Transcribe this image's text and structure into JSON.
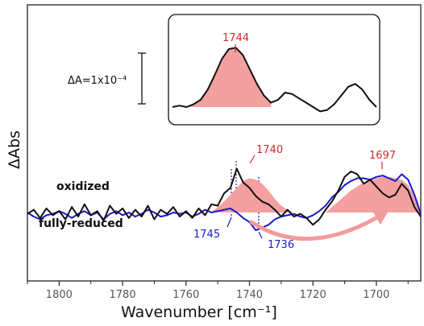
{
  "chart_data": {
    "type": "line",
    "xlabel": "Wavenumber [cm⁻¹]",
    "ylabel": "ΔAbs",
    "xlim": [
      1810,
      1686
    ],
    "x_reversed": true,
    "x_ticks": [
      1800,
      1780,
      1760,
      1740,
      1720,
      1700
    ],
    "series": [
      {
        "name": "oxidized",
        "color": "#111111",
        "x": [
          1810,
          1808,
          1806,
          1804,
          1802,
          1800,
          1798,
          1796,
          1794,
          1792,
          1790,
          1788,
          1786,
          1784,
          1782,
          1780,
          1778,
          1776,
          1774,
          1772,
          1770,
          1768,
          1766,
          1764,
          1762,
          1760,
          1758,
          1756,
          1754,
          1752,
          1750,
          1748,
          1746,
          1744,
          1742,
          1740,
          1738,
          1736,
          1734,
          1732,
          1730,
          1728,
          1726,
          1724,
          1722,
          1720,
          1718,
          1716,
          1714,
          1712,
          1710,
          1708,
          1706,
          1704,
          1702,
          1700,
          1698,
          1696,
          1694,
          1692,
          1690,
          1688,
          1686
        ],
        "y": [
          -0.1,
          0.2,
          -0.4,
          0.3,
          -0.2,
          0.1,
          -0.5,
          0.4,
          -0.3,
          0.6,
          -0.2,
          0.1,
          -0.6,
          0.5,
          -0.1,
          0.3,
          -0.4,
          0.2,
          -0.3,
          0.5,
          -0.5,
          0.2,
          -0.1,
          0.4,
          -0.3,
          0.1,
          -0.4,
          0.3,
          -0.2,
          0.6,
          0.5,
          1.4,
          1.8,
          3.2,
          2.2,
          1.8,
          1.2,
          0.8,
          0.6,
          0.2,
          -0.3,
          0.2,
          -0.3,
          -0.1,
          -0.4,
          -0.9,
          -0.5,
          0.2,
          0.8,
          1.6,
          2.6,
          3.0,
          2.8,
          2.1,
          2.4,
          1.9,
          1.4,
          1.1,
          1.3,
          2.1,
          1.6,
          0.4,
          -0.3
        ]
      },
      {
        "name": "fully-reduced",
        "color": "#1a1ad0",
        "x": [
          1810,
          1808,
          1806,
          1804,
          1802,
          1800,
          1798,
          1796,
          1794,
          1792,
          1790,
          1788,
          1786,
          1784,
          1782,
          1780,
          1778,
          1776,
          1774,
          1772,
          1770,
          1768,
          1766,
          1764,
          1762,
          1760,
          1758,
          1756,
          1754,
          1752,
          1750,
          1748,
          1746,
          1744,
          1742,
          1740,
          1738,
          1736,
          1734,
          1732,
          1730,
          1728,
          1726,
          1724,
          1722,
          1720,
          1718,
          1716,
          1714,
          1712,
          1710,
          1708,
          1706,
          1704,
          1702,
          1700,
          1698,
          1696,
          1694,
          1692,
          1690,
          1688,
          1686
        ],
        "y": [
          0.0,
          -0.3,
          -0.5,
          -0.2,
          -0.1,
          0.1,
          -0.1,
          -0.4,
          -0.1,
          0.1,
          -0.2,
          0.0,
          -0.5,
          -0.1,
          0.1,
          -0.2,
          0.0,
          -0.3,
          -0.1,
          0.2,
          0.0,
          -0.3,
          -0.2,
          0.0,
          -0.1,
          0.0,
          -0.3,
          -0.1,
          0.2,
          0.0,
          0.1,
          0.2,
          0.3,
          0.0,
          -0.4,
          -0.7,
          -1.3,
          -1.1,
          -0.9,
          -0.5,
          -0.3,
          -0.2,
          -0.1,
          -0.3,
          -0.4,
          -0.2,
          0.1,
          0.5,
          1.1,
          1.5,
          2.0,
          2.3,
          2.5,
          2.5,
          2.4,
          2.6,
          2.7,
          2.5,
          2.3,
          2.8,
          2.4,
          1.3,
          -0.1
        ]
      }
    ],
    "shaded_bands": [
      {
        "name": "band-1740",
        "color": "#f4a0a0",
        "x": [
          1752,
          1748,
          1744,
          1742,
          1740,
          1738,
          1736,
          1734,
          1732,
          1730,
          1728,
          1726
        ],
        "y": [
          0,
          0.8,
          1.8,
          2.3,
          2.5,
          2.4,
          2.1,
          1.6,
          1.0,
          0.5,
          0.2,
          0
        ]
      },
      {
        "name": "band-1697",
        "color": "#f4a0a0",
        "x": [
          1716,
          1712,
          1708,
          1704,
          1700,
          1698,
          1696,
          1694,
          1692,
          1690,
          1688,
          1686
        ],
        "y": [
          0,
          0.8,
          1.6,
          2.2,
          2.5,
          2.6,
          2.6,
          2.5,
          2.4,
          2.0,
          1.2,
          0
        ]
      }
    ],
    "annotations": [
      {
        "text": "1740",
        "color": "red"
      },
      {
        "text": "1697",
        "color": "red"
      },
      {
        "text": "1745",
        "color": "blue"
      },
      {
        "text": "1736",
        "color": "blue"
      }
    ],
    "series_labels": [
      "oxidized",
      "fully-reduced"
    ],
    "inset": {
      "peak_label": "1744",
      "scale_label": "ΔA=1x10⁻⁴",
      "y": [
        0.0,
        0.1,
        0.0,
        0.2,
        0.5,
        1.2,
        2.2,
        3.3,
        4.0,
        4.1,
        3.6,
        2.6,
        1.6,
        0.8,
        0.3,
        0.5,
        1.0,
        0.9,
        0.6,
        0.3,
        0.0,
        -0.3,
        -0.2,
        0.2,
        0.8,
        1.4,
        1.6,
        1.2,
        0.5,
        0.0
      ],
      "fill_range": [
        2,
        14
      ]
    }
  }
}
